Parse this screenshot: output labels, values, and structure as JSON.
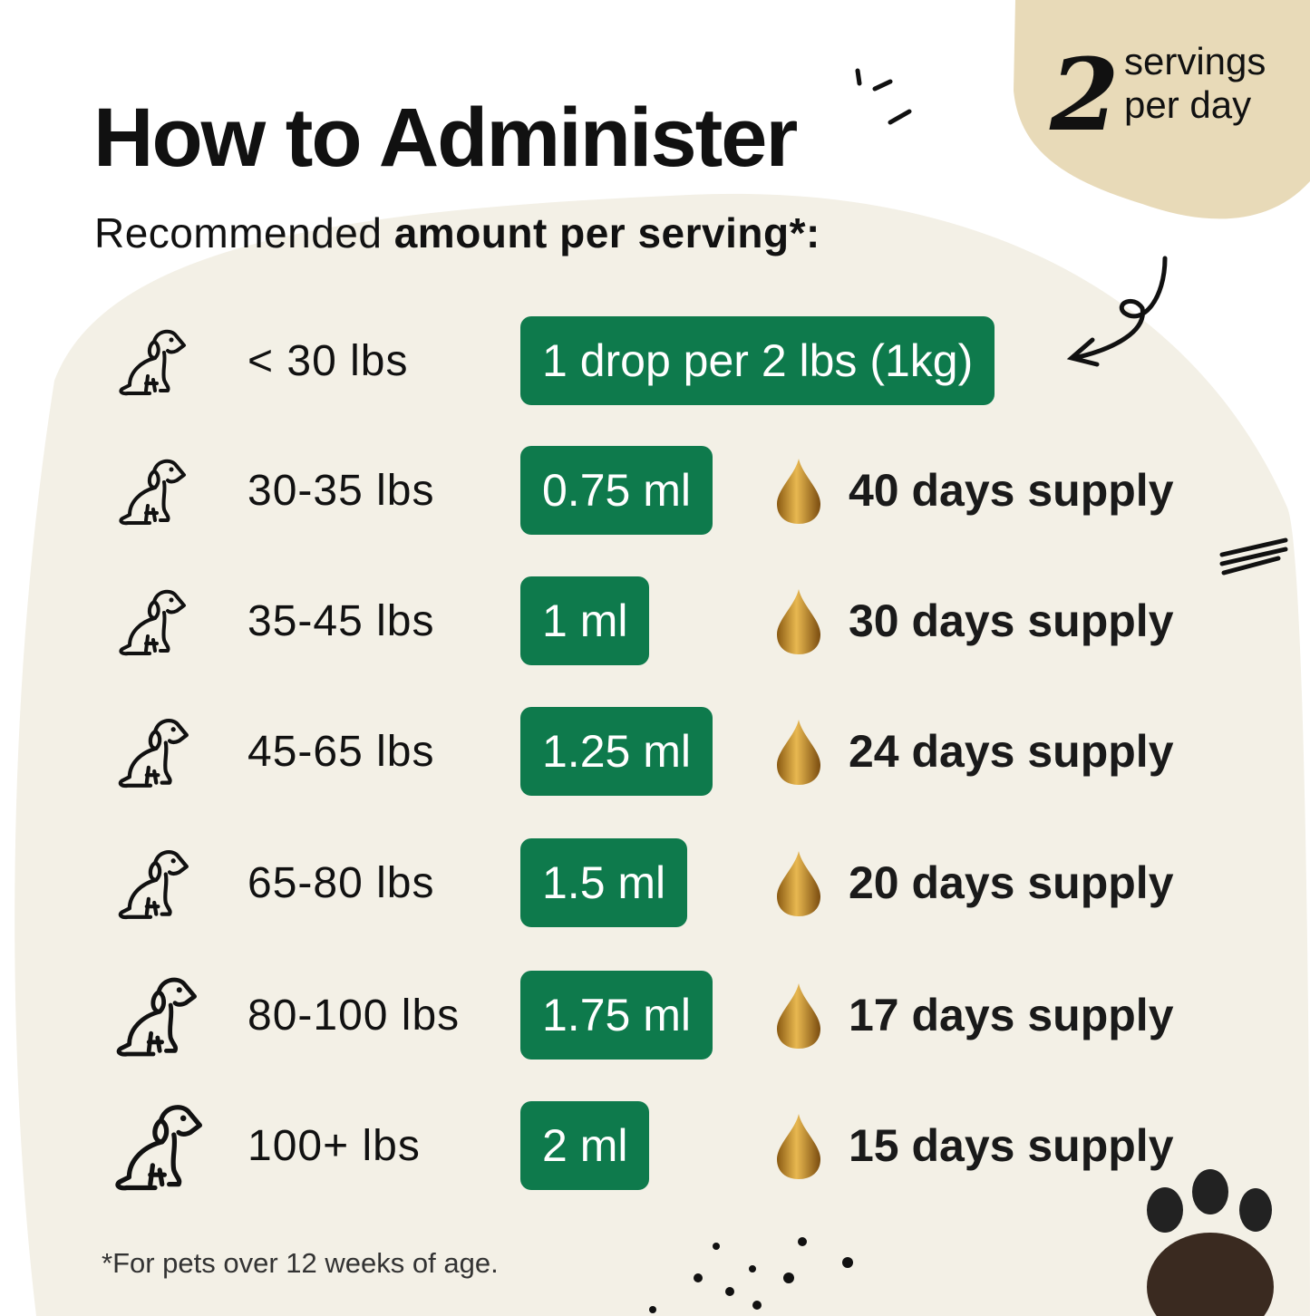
{
  "header": {
    "title": "How to Administer",
    "subtitle_regular": "Recommended ",
    "subtitle_bold": "amount per serving",
    "subtitle_suffix": "*:"
  },
  "badge": {
    "number": "2",
    "line1": "servings",
    "line2": "per day"
  },
  "colors": {
    "accent": "#0e7a4c",
    "blob": "#f3f0e6",
    "badge_bg": "#e8dab8",
    "drop": "#c8902a"
  },
  "rows": [
    {
      "icon": "dog-icon",
      "weight": "< 30 lbs",
      "amount": "1 drop per 2 lbs (1kg)",
      "supply": ""
    },
    {
      "icon": "dog-icon",
      "weight": "30-35 lbs",
      "amount": "0.75 ml",
      "supply": "40 days supply"
    },
    {
      "icon": "dog-icon",
      "weight": "35-45 lbs",
      "amount": "1 ml",
      "supply": "30 days supply"
    },
    {
      "icon": "dog-icon",
      "weight": "45-65 lbs",
      "amount": "1.25 ml",
      "supply": "24 days supply"
    },
    {
      "icon": "dog-icon",
      "weight": "65-80 lbs",
      "amount": "1.5 ml",
      "supply": "20 days supply"
    },
    {
      "icon": "dog-icon",
      "weight": "80-100 lbs",
      "amount": "1.75 ml",
      "supply": "17 days supply"
    },
    {
      "icon": "dog-icon",
      "weight": "100+ lbs",
      "amount": "2 ml",
      "supply": "15 days supply"
    }
  ],
  "footnote": "*For pets over 12 weeks of age."
}
